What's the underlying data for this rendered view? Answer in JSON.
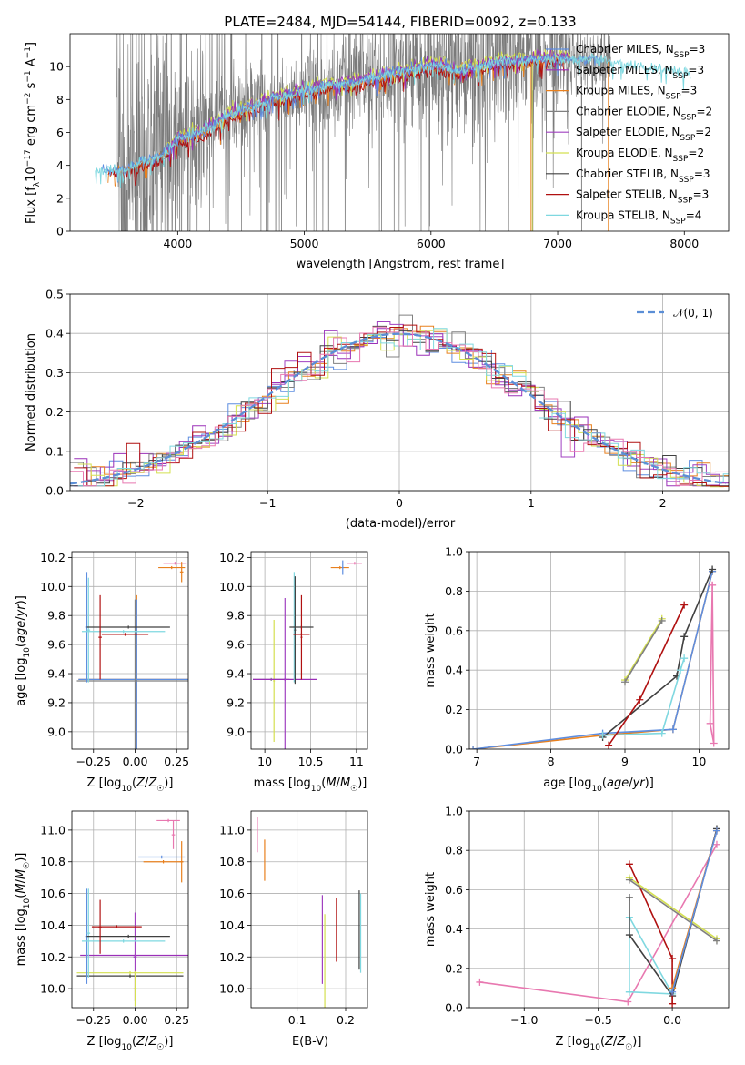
{
  "figure": {
    "title": "PLATE=2484, MJD=54144, FIBERID=0092, z=0.133",
    "colors": {
      "Chabrier MILES": "#5e8ee0",
      "Salpeter MILES": "#9b30b8",
      "Kroupa MILES": "#e8801e",
      "Chabrier ELODIE": "#808080",
      "Salpeter ELODIE": "#a040c0",
      "Kroupa ELODIE": "#d4e050",
      "Chabrier STELIB": "#404040",
      "Salpeter STELIB": "#b01010",
      "Kroupa STELIB": "#7fd8e0",
      "pink": "#e878b0",
      "normal": "#5b8ed6"
    }
  },
  "chart_data": [
    {
      "id": "spectrum",
      "type": "line",
      "xlabel": "wavelength [Angstrom, rest frame]",
      "ylabel": "Flux [f_λ10^-17 erg cm^-2 s^-1 A^-1]",
      "xlim": [
        3150,
        8350
      ],
      "ylim": [
        0,
        12
      ],
      "xticks": [
        4000,
        5000,
        6000,
        7000,
        8000
      ],
      "yticks": [
        0,
        2,
        4,
        6,
        8,
        10
      ],
      "grid": false,
      "legend_position": "right",
      "legend": [
        {
          "label": "Chabrier MILES, N_SSP=3",
          "main": "Chabrier MILES, N",
          "sub": "SSP",
          "tail": "=3",
          "color": "#5e8ee0"
        },
        {
          "label": "Salpeter MILES, N_SSP=3",
          "main": "Salpeter MILES, N",
          "sub": "SSP",
          "tail": "=3",
          "color": "#9b30b8"
        },
        {
          "label": "Kroupa MILES, N_SSP=3",
          "main": "Kroupa MILES, N",
          "sub": "SSP",
          "tail": "=3",
          "color": "#e8801e"
        },
        {
          "label": "Chabrier ELODIE, N_SSP=2",
          "main": "Chabrier ELODIE, N",
          "sub": "SSP",
          "tail": "=2",
          "color": "#808080"
        },
        {
          "label": "Salpeter ELODIE, N_SSP=2",
          "main": "Salpeter ELODIE, N",
          "sub": "SSP",
          "tail": "=2",
          "color": "#a040c0"
        },
        {
          "label": "Kroupa ELODIE, N_SSP=2",
          "main": "Kroupa ELODIE, N",
          "sub": "SSP",
          "tail": "=2",
          "color": "#d4e050"
        },
        {
          "label": "Chabrier STELIB, N_SSP=3",
          "main": "Chabrier STELIB, N",
          "sub": "SSP",
          "tail": "=3",
          "color": "#404040"
        },
        {
          "label": "Salpeter STELIB, N_SSP=3",
          "main": "Salpeter STELIB, N",
          "sub": "SSP",
          "tail": "=3",
          "color": "#b01010"
        },
        {
          "label": "Kroupa STELIB, N_SSP=4",
          "main": "Kroupa STELIB, N",
          "sub": "SSP",
          "tail": "=4",
          "color": "#7fd8e0"
        }
      ],
      "continuum": {
        "x": [
          3400,
          3600,
          3700,
          3800,
          3900,
          4000,
          4100,
          4200,
          4300,
          4400,
          4500,
          4600,
          4700,
          4800,
          4900,
          5000,
          5100,
          5200,
          5300,
          5400,
          5500,
          5600,
          5700,
          5800,
          5900,
          6000,
          6100,
          6200,
          6300,
          6400,
          6500,
          6600,
          6700,
          6800,
          6900,
          7000,
          7100,
          7200,
          7300,
          7400,
          7500,
          7600,
          7700,
          7800,
          7900,
          8050
        ],
        "y": [
          3.7,
          3.8,
          4.1,
          4.4,
          4.7,
          5.6,
          5.8,
          6.0,
          6.5,
          7.0,
          7.3,
          7.6,
          7.9,
          8.2,
          8.3,
          8.5,
          8.7,
          8.9,
          8.9,
          9.0,
          9.2,
          9.4,
          9.6,
          9.7,
          9.9,
          10.1,
          10.0,
          9.7,
          9.9,
          10.0,
          10.2,
          10.4,
          10.3,
          10.4,
          10.5,
          10.5,
          10.4,
          10.4,
          10.4,
          10.3,
          10.2,
          10.1,
          10.0,
          9.9,
          9.8,
          9.6
        ]
      }
    },
    {
      "id": "residuals",
      "type": "line",
      "xlabel": "(data-model)/error",
      "ylabel": "Normed distribution",
      "xlim": [
        -2.5,
        2.5
      ],
      "ylim": [
        0,
        0.5
      ],
      "xticks": [
        -2,
        -1,
        0,
        1,
        2
      ],
      "yticks": [
        0.0,
        0.1,
        0.2,
        0.3,
        0.4,
        0.5
      ],
      "grid": true,
      "legend_position": "top-right",
      "legend": [
        {
          "label": "𝒩(0, 1)",
          "color": "#5b8ed6"
        }
      ]
    },
    {
      "id": "age-vs-Z",
      "type": "scatter",
      "xlabel": "Z [log10(Z/Z☉)]",
      "ylabel": "age [log10(age/yr)]",
      "xlim": [
        -0.38,
        0.32
      ],
      "ylim": [
        8.88,
        10.24
      ],
      "xticks": [
        -0.25,
        0.0,
        0.25
      ],
      "xticklabels": [
        "−0.25",
        "0.00",
        "0.25"
      ],
      "yticks": [
        9.0,
        9.2,
        9.4,
        9.6,
        9.8,
        10.0,
        10.2
      ],
      "grid": true,
      "points": [
        {
          "x": 0.01,
          "y": 9.36,
          "xerr": 0.35,
          "yerr": 0.58,
          "color": "#e8801e"
        },
        {
          "x": 0.01,
          "y": 9.36,
          "xerr": 0.35,
          "yerr": 0.55,
          "color": "#5e8ee0"
        },
        {
          "x": 0.0,
          "y": 9.35,
          "xerr": 0.35,
          "yerr": 0.56,
          "color": "#808080"
        },
        {
          "x": -0.29,
          "y": 9.72,
          "xerr": 0.01,
          "yerr": 0.38,
          "color": "#5e8ee0"
        },
        {
          "x": -0.28,
          "y": 9.7,
          "xerr": 0.01,
          "yerr": 0.36,
          "color": "#7fd8e0"
        },
        {
          "x": -0.04,
          "y": 9.72,
          "xerr": 0.25,
          "yerr": 0.01,
          "color": "#404040"
        },
        {
          "x": -0.07,
          "y": 9.69,
          "xerr": 0.25,
          "yerr": 0.01,
          "color": "#7fd8e0"
        },
        {
          "x": -0.06,
          "y": 9.67,
          "xerr": 0.14,
          "yerr": 0.01,
          "color": "#b01010"
        },
        {
          "x": -0.21,
          "y": 9.65,
          "xerr": 0.01,
          "yerr": 0.29,
          "color": "#b01010"
        },
        {
          "x": 0.24,
          "y": 10.16,
          "xerr": 0.07,
          "yerr": 0.01,
          "color": "#e878b0"
        },
        {
          "x": 0.22,
          "y": 10.13,
          "xerr": 0.08,
          "yerr": 0.01,
          "color": "#e8801e"
        },
        {
          "x": 0.28,
          "y": 10.1,
          "xerr": 0.01,
          "yerr": 0.07,
          "color": "#e8801e"
        }
      ]
    },
    {
      "id": "age-vs-mass",
      "type": "scatter",
      "xlabel": "mass [log10(M/M☉)]",
      "ylabel": "",
      "xlim": [
        9.85,
        11.12
      ],
      "ylim": [
        8.88,
        10.24
      ],
      "xticks": [
        10.0,
        10.5,
        11.0
      ],
      "yticks": [
        9.0,
        9.2,
        9.4,
        9.6,
        9.8,
        10.0,
        10.2
      ],
      "grid": true,
      "points": [
        {
          "x": 10.1,
          "y": 9.35,
          "xerr": 0.01,
          "yerr": 0.42,
          "color": "#d4e050"
        },
        {
          "x": 10.07,
          "y": 9.36,
          "xerr": 0.2,
          "yerr": 0.01,
          "color": "#808080"
        },
        {
          "x": 10.22,
          "y": 9.36,
          "xerr": 0.35,
          "yerr": 0.01,
          "color": "#9b30b8"
        },
        {
          "x": 10.22,
          "y": 9.36,
          "xerr": 0.01,
          "yerr": 0.56,
          "color": "#a040c0"
        },
        {
          "x": 10.32,
          "y": 9.72,
          "xerr": 0.01,
          "yerr": 0.38,
          "color": "#7fd8e0"
        },
        {
          "x": 10.33,
          "y": 9.7,
          "xerr": 0.01,
          "yerr": 0.37,
          "color": "#404040"
        },
        {
          "x": 10.4,
          "y": 9.72,
          "xerr": 0.13,
          "yerr": 0.01,
          "color": "#404040"
        },
        {
          "x": 10.4,
          "y": 9.67,
          "xerr": 0.09,
          "yerr": 0.01,
          "color": "#b01010"
        },
        {
          "x": 10.4,
          "y": 9.65,
          "xerr": 0.01,
          "yerr": 0.29,
          "color": "#b01010"
        },
        {
          "x": 10.82,
          "y": 10.13,
          "xerr": 0.1,
          "yerr": 0.01,
          "color": "#e8801e"
        },
        {
          "x": 10.85,
          "y": 10.13,
          "xerr": 0.01,
          "yerr": 0.05,
          "color": "#5e8ee0"
        },
        {
          "x": 10.98,
          "y": 10.16,
          "xerr": 0.08,
          "yerr": 0.01,
          "color": "#e878b0"
        }
      ]
    },
    {
      "id": "weight-vs-age",
      "type": "line",
      "xlabel": "age [log10(age/yr)]",
      "ylabel": "mass weight",
      "xlim": [
        6.9,
        10.4
      ],
      "ylim": [
        0,
        1
      ],
      "xticks": [
        7,
        8,
        9,
        10
      ],
      "yticks": [
        0.0,
        0.2,
        0.4,
        0.6,
        0.8,
        1.0
      ],
      "grid": true,
      "series": [
        {
          "color": "#e8801e",
          "x": [
            6.95,
            8.7,
            9.65,
            10.18
          ],
          "y": [
            0.0,
            0.07,
            0.1,
            0.9
          ]
        },
        {
          "color": "#5e8ee0",
          "x": [
            6.95,
            8.7,
            9.65,
            10.18
          ],
          "y": [
            0.0,
            0.08,
            0.1,
            0.9
          ]
        },
        {
          "color": "#404040",
          "x": [
            8.7,
            9.7,
            9.8,
            10.18
          ],
          "y": [
            0.06,
            0.37,
            0.57,
            0.91
          ]
        },
        {
          "color": "#7fd8e0",
          "x": [
            8.7,
            9.5,
            9.75,
            9.8
          ],
          "y": [
            0.07,
            0.08,
            0.4,
            0.46
          ]
        },
        {
          "color": "#b01010",
          "x": [
            8.78,
            9.2,
            9.8
          ],
          "y": [
            0.02,
            0.25,
            0.73
          ]
        },
        {
          "color": "#d4e050",
          "x": [
            9.0,
            9.5
          ],
          "y": [
            0.35,
            0.66
          ]
        },
        {
          "color": "#808080",
          "x": [
            9.0,
            9.5
          ],
          "y": [
            0.34,
            0.65
          ]
        },
        {
          "color": "#e878b0",
          "x": [
            10.18,
            10.15,
            10.2,
            10.18
          ],
          "y": [
            0.83,
            0.13,
            0.03,
            0.83
          ]
        }
      ]
    },
    {
      "id": "mass-vs-Z",
      "type": "scatter",
      "xlabel": "Z [log10(Z/Z☉)]",
      "ylabel": "mass [log10(M/M☉)]",
      "xlim": [
        -0.38,
        0.32
      ],
      "ylim": [
        9.88,
        11.12
      ],
      "xticks": [
        -0.25,
        0.0,
        0.25
      ],
      "xticklabels": [
        "−0.25",
        "0.00",
        "0.25"
      ],
      "yticks": [
        10.0,
        10.2,
        10.4,
        10.6,
        10.8,
        11.0
      ],
      "grid": true,
      "points": [
        {
          "x": -0.03,
          "y": 10.08,
          "xerr": 0.32,
          "yerr": 0.01,
          "color": "#404040"
        },
        {
          "x": -0.03,
          "y": 10.1,
          "xerr": 0.32,
          "yerr": 0.01,
          "color": "#d4e050"
        },
        {
          "x": 0.0,
          "y": 10.21,
          "xerr": 0.33,
          "yerr": 0.01,
          "color": "#9b30b8"
        },
        {
          "x": 0.0,
          "y": 10.2,
          "xerr": 0.01,
          "yerr": 0.28,
          "color": "#a040c0"
        },
        {
          "x": 0.0,
          "y": 10.0,
          "xerr": 0.01,
          "yerr": 0.11,
          "color": "#d4e050"
        },
        {
          "x": -0.29,
          "y": 10.33,
          "xerr": 0.01,
          "yerr": 0.3,
          "color": "#5e8ee0"
        },
        {
          "x": -0.28,
          "y": 10.35,
          "xerr": 0.01,
          "yerr": 0.28,
          "color": "#7fd8e0"
        },
        {
          "x": -0.04,
          "y": 10.33,
          "xerr": 0.25,
          "yerr": 0.01,
          "color": "#404040"
        },
        {
          "x": -0.07,
          "y": 10.3,
          "xerr": 0.25,
          "yerr": 0.01,
          "color": "#7fd8e0"
        },
        {
          "x": -0.11,
          "y": 10.39,
          "xerr": 0.15,
          "yerr": 0.01,
          "color": "#b01010"
        },
        {
          "x": -0.21,
          "y": 10.39,
          "xerr": 0.01,
          "yerr": 0.17,
          "color": "#b01010"
        },
        {
          "x": 0.16,
          "y": 10.83,
          "xerr": 0.14,
          "yerr": 0.01,
          "color": "#5e8ee0"
        },
        {
          "x": 0.17,
          "y": 10.8,
          "xerr": 0.12,
          "yerr": 0.01,
          "color": "#e8801e"
        },
        {
          "x": 0.28,
          "y": 10.8,
          "xerr": 0.01,
          "yerr": 0.13,
          "color": "#e8801e"
        },
        {
          "x": 0.2,
          "y": 11.06,
          "xerr": 0.07,
          "yerr": 0.01,
          "color": "#e878b0"
        },
        {
          "x": 0.23,
          "y": 10.97,
          "xerr": 0.01,
          "yerr": 0.09,
          "color": "#e878b0"
        }
      ]
    },
    {
      "id": "mass-vs-EBV",
      "type": "scatter",
      "xlabel": "E(B-V)",
      "ylabel": "",
      "xlim": [
        0.005,
        0.245
      ],
      "ylim": [
        9.88,
        11.12
      ],
      "xticks": [
        0.1,
        0.2
      ],
      "yticks": [
        10.0,
        10.2,
        10.4,
        10.6,
        10.8,
        11.0
      ],
      "grid": true,
      "points": [
        {
          "x": 0.018,
          "y": 10.97,
          "xerr": 0.0,
          "yerr": 0.11,
          "color": "#e878b0"
        },
        {
          "x": 0.033,
          "y": 10.81,
          "xerr": 0.0,
          "yerr": 0.13,
          "color": "#e8801e"
        },
        {
          "x": 0.152,
          "y": 10.31,
          "xerr": 0.0,
          "yerr": 0.28,
          "color": "#a040c0"
        },
        {
          "x": 0.157,
          "y": 10.05,
          "xerr": 0.0,
          "yerr": 0.42,
          "color": "#d4e050"
        },
        {
          "x": 0.181,
          "y": 10.37,
          "xerr": 0.0,
          "yerr": 0.2,
          "color": "#b01010"
        },
        {
          "x": 0.228,
          "y": 10.37,
          "xerr": 0.0,
          "yerr": 0.25,
          "color": "#404040"
        },
        {
          "x": 0.231,
          "y": 10.35,
          "xerr": 0.0,
          "yerr": 0.25,
          "color": "#7fd8e0"
        }
      ]
    },
    {
      "id": "weight-vs-Z",
      "type": "line",
      "xlabel": "Z [log10(Z/Z☉)]",
      "ylabel": "mass weight",
      "xlim": [
        -1.37,
        0.38
      ],
      "ylim": [
        0,
        1
      ],
      "xticks": [
        -1.0,
        -0.5,
        0.0
      ],
      "xticklabels": [
        "−1.0",
        "−0.5",
        "0.0"
      ],
      "yticks": [
        0.0,
        0.2,
        0.4,
        0.6,
        0.8,
        1.0
      ],
      "grid": true,
      "series": [
        {
          "color": "#e878b0",
          "x": [
            -1.3,
            -0.3,
            0.3
          ],
          "y": [
            0.13,
            0.03,
            0.83
          ]
        },
        {
          "color": "#7fd8e0",
          "x": [
            -0.29,
            -0.29,
            0.0,
            -0.29
          ],
          "y": [
            0.08,
            0.46,
            0.07,
            0.08
          ]
        },
        {
          "color": "#404040",
          "x": [
            -0.29,
            -0.29,
            0.0,
            0.3
          ],
          "y": [
            0.56,
            0.37,
            0.06,
            0.91
          ]
        },
        {
          "color": "#b01010",
          "x": [
            -0.29,
            0.0,
            0.0
          ],
          "y": [
            0.73,
            0.25,
            0.02
          ]
        },
        {
          "color": "#d4e050",
          "x": [
            -0.29,
            0.3
          ],
          "y": [
            0.66,
            0.35
          ]
        },
        {
          "color": "#808080",
          "x": [
            -0.29,
            0.3
          ],
          "y": [
            0.65,
            0.34
          ]
        },
        {
          "color": "#e8801e",
          "x": [
            0.0,
            0.3
          ],
          "y": [
            0.1,
            0.9
          ]
        },
        {
          "color": "#5e8ee0",
          "x": [
            0.0,
            0.3
          ],
          "y": [
            0.08,
            0.9
          ]
        }
      ]
    }
  ]
}
